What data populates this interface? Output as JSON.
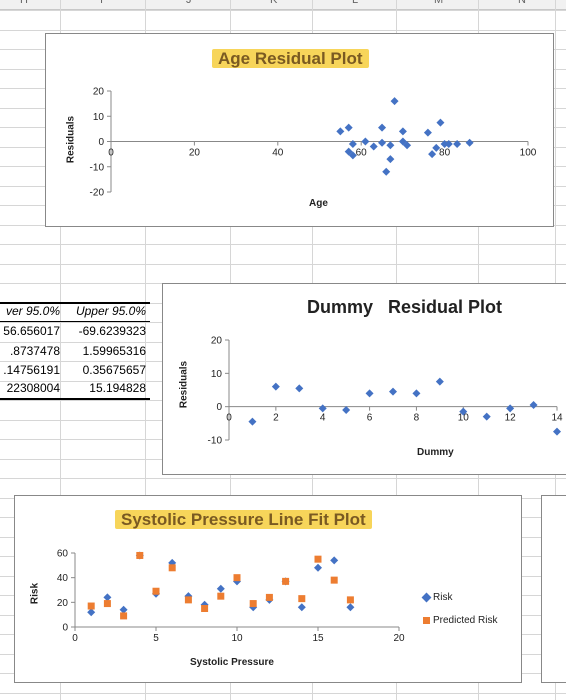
{
  "spreadsheet": {
    "column_headers": [
      "H",
      "I",
      "J",
      "K",
      "L",
      "M",
      "N"
    ]
  },
  "stats_table": {
    "headers": [
      "ver 95.0%",
      "Upper 95.0%"
    ],
    "rows": [
      [
        "56.656017",
        "-69.6239323"
      ],
      [
        ".8737478",
        "1.59965316"
      ],
      ".14756191|0.35675657",
      [
        "22308004",
        "15.194828"
      ]
    ]
  },
  "chart_data": [
    {
      "type": "scatter",
      "title": "Age  Residual Plot",
      "xlabel": "Age",
      "ylabel": "Residuals",
      "xlim": [
        0,
        100
      ],
      "ylim": [
        -20,
        20
      ],
      "xticks": [
        0,
        20,
        40,
        60,
        80,
        100
      ],
      "yticks": [
        -20,
        -10,
        0,
        10,
        20
      ],
      "series": [
        {
          "color": "#4472c4",
          "points": [
            [
              55,
              4
            ],
            [
              57,
              5.5
            ],
            [
              57,
              -4
            ],
            [
              58,
              -5.5
            ],
            [
              58,
              -1
            ],
            [
              61,
              0
            ],
            [
              63,
              -2
            ],
            [
              65,
              5.5
            ],
            [
              65,
              -0.5
            ],
            [
              66,
              -12
            ],
            [
              67,
              -7
            ],
            [
              67,
              -1.5
            ],
            [
              68,
              16
            ],
            [
              70,
              4
            ],
            [
              70,
              0
            ],
            [
              71,
              -1.5
            ],
            [
              76,
              3.5
            ],
            [
              77,
              -5
            ],
            [
              78,
              -2.5
            ],
            [
              79,
              7.5
            ],
            [
              80,
              -1
            ],
            [
              81,
              -1
            ],
            [
              83,
              -1
            ],
            [
              86,
              -0.5
            ]
          ]
        }
      ]
    },
    {
      "type": "scatter",
      "title": "Dummy   Residual Plot",
      "xlabel": "Dummy",
      "ylabel": "Residuals",
      "xlim": [
        0,
        14
      ],
      "ylim": [
        -10,
        20
      ],
      "xticks": [
        0,
        2,
        4,
        6,
        8,
        10,
        12,
        14
      ],
      "yticks": [
        -10,
        0,
        10,
        20
      ],
      "series": [
        {
          "color": "#4472c4",
          "points": [
            [
              1,
              -4.5
            ],
            [
              2,
              6
            ],
            [
              3,
              5.5
            ],
            [
              4,
              -0.5
            ],
            [
              5,
              -1
            ],
            [
              6,
              4
            ],
            [
              7,
              4.5
            ],
            [
              8,
              4
            ],
            [
              9,
              7.5
            ],
            [
              10,
              -1.5
            ],
            [
              11,
              -3
            ],
            [
              12,
              -0.5
            ],
            [
              13,
              0.5
            ],
            [
              14,
              -7.5
            ]
          ]
        }
      ]
    },
    {
      "type": "scatter",
      "title": "Systolic Pressure Line Fit  Plot",
      "xlabel": "Systolic Pressure",
      "ylabel": "Risk",
      "xlim": [
        0,
        20
      ],
      "ylim": [
        0,
        60
      ],
      "xticks": [
        0,
        5,
        10,
        15,
        20
      ],
      "yticks": [
        0,
        20,
        40,
        60
      ],
      "series": [
        {
          "name": "Risk",
          "color": "#4472c4",
          "marker": "diamond",
          "points": [
            [
              1,
              12
            ],
            [
              2,
              24
            ],
            [
              3,
              14
            ],
            [
              4,
              58
            ],
            [
              5,
              27
            ],
            [
              6,
              52
            ],
            [
              7,
              25
            ],
            [
              8,
              18
            ],
            [
              9,
              31
            ],
            [
              10,
              37
            ],
            [
              11,
              16
            ],
            [
              12,
              22
            ],
            [
              13,
              37
            ],
            [
              14,
              16
            ],
            [
              15,
              48
            ],
            [
              16,
              54
            ],
            [
              17,
              16
            ]
          ]
        },
        {
          "name": "Predicted Risk",
          "color": "#ed7d31",
          "marker": "square",
          "points": [
            [
              1,
              17
            ],
            [
              2,
              19
            ],
            [
              3,
              9
            ],
            [
              4,
              58
            ],
            [
              5,
              29
            ],
            [
              6,
              48
            ],
            [
              7,
              22
            ],
            [
              8,
              15
            ],
            [
              9,
              25
            ],
            [
              10,
              40
            ],
            [
              11,
              19
            ],
            [
              12,
              24
            ],
            [
              13,
              37
            ],
            [
              14,
              23
            ],
            [
              15,
              55
            ],
            [
              16,
              38
            ],
            [
              17,
              22
            ]
          ]
        }
      ]
    }
  ]
}
